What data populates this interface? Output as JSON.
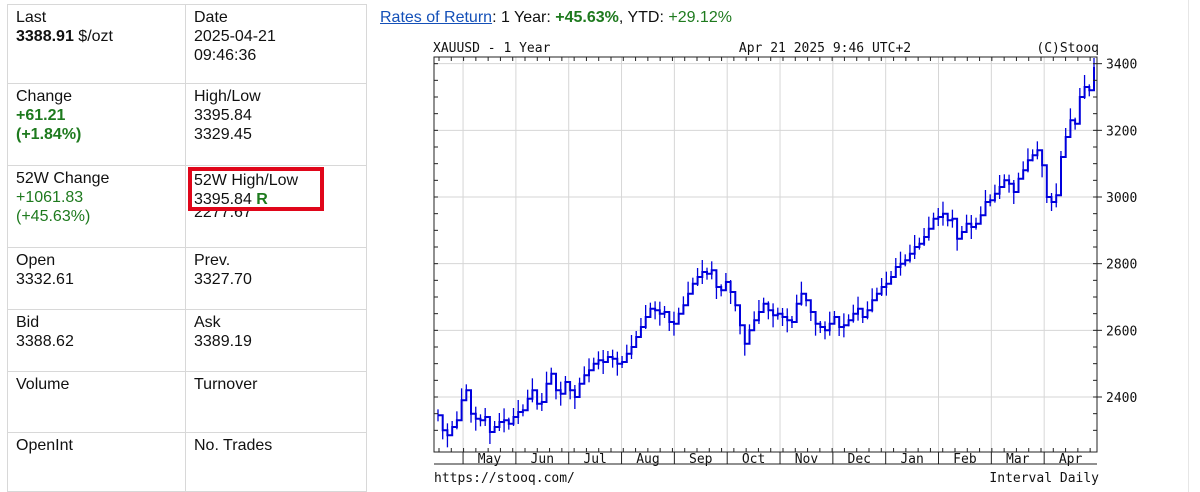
{
  "quote": {
    "last_label": "Last",
    "last_value": "3388.91",
    "last_unit": " $/ozt",
    "date_label": "Date",
    "date_value": "2025-04-21",
    "time_value": "09:46:36",
    "change_label": "Change",
    "change_value": "+61.21",
    "change_pct": "(+1.84%)",
    "highlow_label": "High/Low",
    "high_value": "3395.84",
    "low_value": "3329.45",
    "w52_change_label": "52W Change",
    "w52_change_value": "+1061.83",
    "w52_change_pct": "(+45.63%)",
    "w52_highlow_label": "52W High/Low",
    "w52_high_value": "3395.84",
    "w52_high_flag": "R",
    "w52_low_value": "2277.67",
    "open_label": "Open",
    "open_value": "3332.61",
    "prev_label": "Prev.",
    "prev_value": "3327.70",
    "bid_label": "Bid",
    "bid_value": "3388.62",
    "ask_label": "Ask",
    "ask_value": "3389.19",
    "volume_label": "Volume",
    "turnover_label": "Turnover",
    "openint_label": "OpenInt",
    "trades_label": "No. Trades"
  },
  "returns": {
    "link_label": "Rates of Return",
    "sep": ": 1 Year: ",
    "year_value": "+45.63%",
    "ytd_label": ", YTD: ",
    "ytd_value": "+29.12%"
  },
  "colors": {
    "green": "#1e7a1e",
    "link": "#1450b8",
    "line": "#0000dd",
    "highlight": "#e0061a"
  },
  "chart_data": {
    "type": "line",
    "symbol_label": "XAUUSD - 1 Year",
    "timestamp": "Apr 21 2025 9:46 UTC+2",
    "copyright": "(C)Stooq",
    "footer_left": "https://stooq.com/",
    "footer_right": "Interval Daily",
    "x_tick_labels": [
      "May",
      "Jun",
      "Jul",
      "Aug",
      "Sep",
      "Oct",
      "Nov",
      "Dec",
      "Jan",
      "Feb",
      "Mar",
      "Apr"
    ],
    "y_ticks": [
      2400,
      2600,
      2800,
      3000,
      3200,
      3400
    ],
    "ylim": [
      2235,
      3420
    ],
    "grid": true,
    "series": [
      {
        "values": [
          2345,
          2300,
          2285,
          2310,
          2330,
          2390,
          2420,
          2350,
          2335,
          2330,
          2340,
          2295,
          2310,
          2325,
          2330,
          2320,
          2340,
          2355,
          2360,
          2395,
          2420,
          2380,
          2385,
          2440,
          2470,
          2420,
          2410,
          2445,
          2420,
          2400,
          2440,
          2465,
          2480,
          2500,
          2510,
          2505,
          2520,
          2515,
          2500,
          2505,
          2530,
          2550,
          2580,
          2610,
          2640,
          2665,
          2660,
          2650,
          2655,
          2625,
          2620,
          2650,
          2675,
          2710,
          2740,
          2760,
          2775,
          2770,
          2780,
          2730,
          2720,
          2745,
          2715,
          2675,
          2615,
          2560,
          2600,
          2630,
          2655,
          2680,
          2660,
          2645,
          2650,
          2640,
          2630,
          2625,
          2680,
          2710,
          2690,
          2655,
          2620,
          2610,
          2600,
          2620,
          2640,
          2610,
          2615,
          2630,
          2650,
          2665,
          2640,
          2660,
          2690,
          2710,
          2730,
          2740,
          2760,
          2790,
          2800,
          2810,
          2830,
          2850,
          2860,
          2880,
          2905,
          2935,
          2940,
          2950,
          2930,
          2935,
          2875,
          2895,
          2920,
          2910,
          2920,
          2945,
          2985,
          2990,
          3010,
          3030,
          3050,
          3040,
          3015,
          3055,
          3080,
          3110,
          3125,
          3140,
          3095,
          3000,
          2985,
          3005,
          3120,
          3180,
          3230,
          3220,
          3300,
          3330,
          3320,
          3390
        ]
      }
    ]
  }
}
